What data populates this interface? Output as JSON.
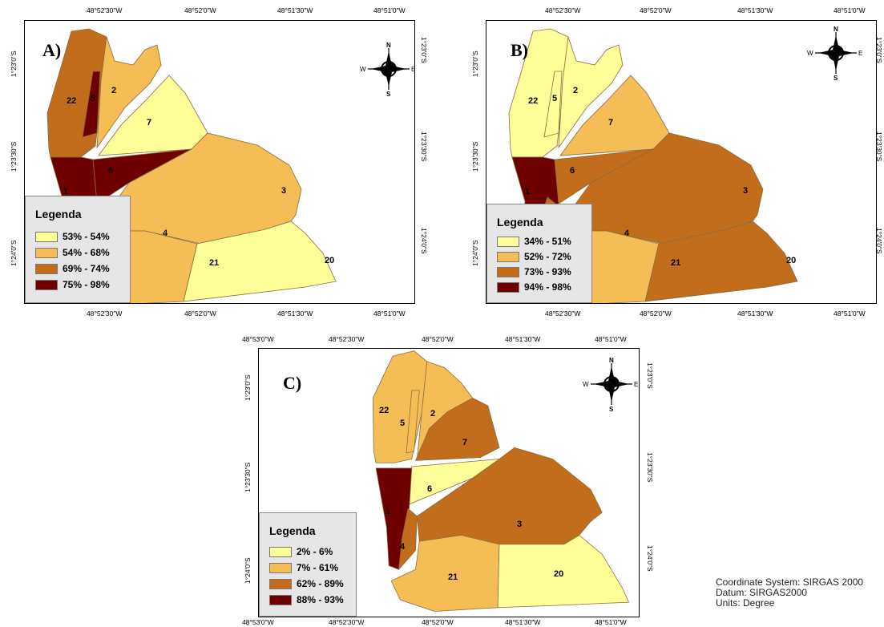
{
  "colors": {
    "c1": "#ffff99",
    "c2": "#f5bd55",
    "c3": "#c16d1b",
    "c4": "#6e0000"
  },
  "axis_labels": {
    "lon_5230": "48°52'30\"W",
    "lon_520": "48°52'0\"W",
    "lon_5130": "48°51'30\"W",
    "lon_510": "48°51'0\"W",
    "lon_530": "48°53'0\"W",
    "lat_230": "1°23'0\"S",
    "lat_2330": "1°23'30\"S",
    "lat_240": "1°24'0\"S"
  },
  "compass": {
    "n": "N",
    "s": "S",
    "e": "E",
    "w": "W"
  },
  "panels": {
    "a": {
      "label": "A)",
      "legend_title": "Legenda",
      "legend": [
        "53% - 54%",
        "54% - 68%",
        "69% - 74%",
        "75% - 98%"
      ],
      "zones": {
        "z1": "c4",
        "z2": "c2",
        "z3": "c2",
        "z4": "c4",
        "z5": "c4",
        "z6": "c4",
        "z7": "c1",
        "z20": "c1",
        "z21": "c2",
        "z22": "c3"
      }
    },
    "b": {
      "label": "B)",
      "legend_title": "Legenda",
      "legend": [
        "34% - 51%",
        "52% - 72%",
        "73% - 93%",
        "94% - 98%"
      ],
      "zones": {
        "z1": "c4",
        "z2": "c1",
        "z3": "c3",
        "z4": "c3",
        "z5": "c1",
        "z6": "c3",
        "z7": "c2",
        "z20": "c3",
        "z21": "c2",
        "z22": "c1"
      }
    },
    "c": {
      "label": "C)",
      "legend_title": "Legenda",
      "legend": [
        "2% - 6%",
        "7% - 61%",
        "62% - 89%",
        "88% - 93%"
      ],
      "zones": {
        "z1": "c4",
        "z2": "c2",
        "z3": "c3",
        "z4": "c3",
        "z5": "c2",
        "z6": "c1",
        "z7": "c3",
        "z20": "c1",
        "z21": "c2",
        "z22": "c2"
      }
    }
  },
  "zone_numbers": [
    "1",
    "2",
    "3",
    "4",
    "5",
    "6",
    "7",
    "20",
    "21",
    "22"
  ],
  "coordinate_info": [
    "Coordinate System: SIRGAS 2000",
    "Datum: SIRGAS2000",
    "Units: Degree"
  ]
}
